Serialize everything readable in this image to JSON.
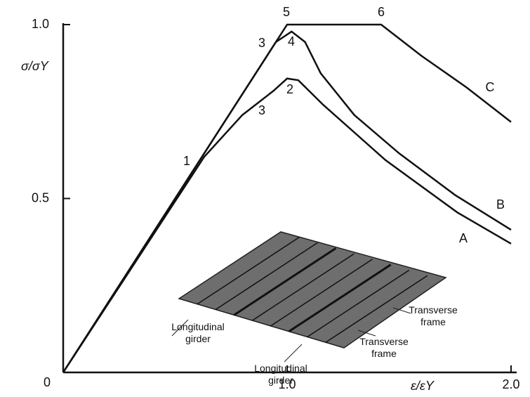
{
  "chart_data": {
    "type": "line",
    "y_label": "σ/σY",
    "x_label": "ε/εY",
    "xlim": [
      0,
      2.0
    ],
    "ylim": [
      0,
      1.0
    ],
    "xticks": [
      {
        "value": 1.0,
        "label": "1.0"
      },
      {
        "value": 2.0,
        "label": "2.0"
      }
    ],
    "yticks": [
      0,
      0.5,
      {
        "value": 1.0,
        "label": "1.0"
      }
    ],
    "series": [
      {
        "name": "A",
        "color": "#111111",
        "x": [
          0,
          0.63,
          0.8,
          0.94,
          1.0,
          1.05,
          1.16,
          1.44,
          1.76,
          2.0
        ],
        "values": [
          0,
          0.62,
          0.74,
          0.81,
          0.845,
          0.84,
          0.77,
          0.61,
          0.46,
          0.37
        ]
      },
      {
        "name": "B",
        "color": "#111111",
        "x": [
          0,
          0.95,
          1.02,
          1.08,
          1.15,
          1.3,
          1.5,
          1.75,
          2.0
        ],
        "values": [
          0,
          0.95,
          0.98,
          0.95,
          0.86,
          0.74,
          0.63,
          0.51,
          0.41
        ]
      },
      {
        "name": "C",
        "color": "#111111",
        "x": [
          0,
          1.0,
          1.42,
          1.6,
          1.8,
          2.0
        ],
        "values": [
          0,
          1.0,
          1.0,
          0.91,
          0.82,
          0.72
        ]
      }
    ],
    "annotations": [
      "1",
      "2",
      "3",
      "3",
      "4",
      "5",
      "6"
    ],
    "illustration_labels": [
      "Longitudinal girder",
      "Longitudinal girder",
      "Transverse frame",
      "Transverse frame"
    ]
  }
}
